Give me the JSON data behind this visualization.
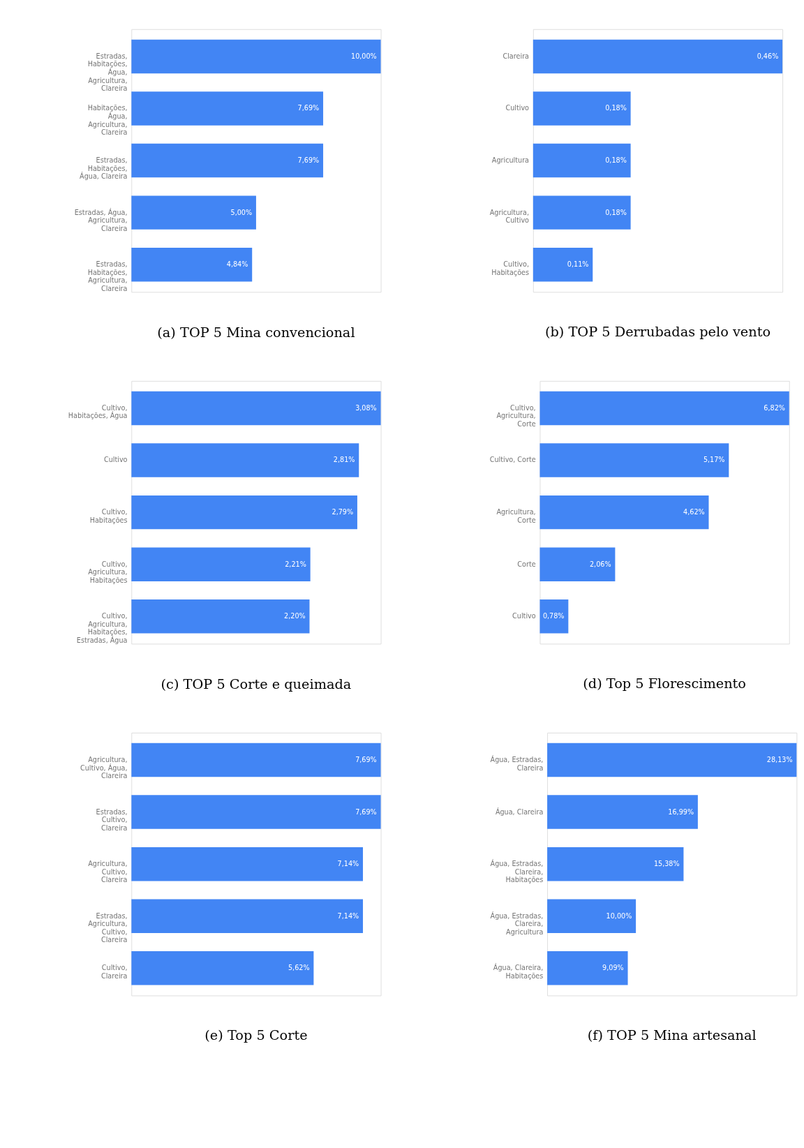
{
  "chart_data": [
    {
      "type": "bar",
      "orientation": "horizontal",
      "title": "(a) TOP 5 Mina convencional",
      "color": "#4285f4",
      "categories": [
        "Estradas, Habitações, Água, Agricultura, Clareira",
        "Habitações, Água, Agricultura, Clareira",
        "Estradas, Habitações, Água, Clareira",
        "Estradas, Água, Agricultura, Clareira",
        "Estradas, Habitações, Agricultura, Clareira"
      ],
      "values": [
        10.0,
        7.69,
        7.69,
        5.0,
        4.84
      ],
      "value_labels": [
        "10,00%",
        "7,69%",
        "7,69%",
        "5,00%",
        "4,84%"
      ]
    },
    {
      "type": "bar",
      "orientation": "horizontal",
      "title": "(b) TOP 5 Derrubadas pelo vento",
      "color": "#4285f4",
      "categories": [
        "Clareira",
        "Cultivo",
        "Agricultura",
        "Agricultura, Cultivo",
        "Cultivo, Habitações"
      ],
      "values": [
        0.46,
        0.18,
        0.18,
        0.18,
        0.11
      ],
      "value_labels": [
        "0,46%",
        "0,18%",
        "0,18%",
        "0,18%",
        "0,11%"
      ]
    },
    {
      "type": "bar",
      "orientation": "horizontal",
      "title": "(c) TOP 5 Corte e queimada",
      "color": "#4285f4",
      "categories": [
        "Cultivo, Habitações, Água",
        "Cultivo",
        "Cultivo, Habitações",
        "Cultivo, Agricultura, Habitações",
        "Cultivo, Agricultura, Habitações, Estradas, Água"
      ],
      "values": [
        3.08,
        2.81,
        2.79,
        2.21,
        2.2
      ],
      "value_labels": [
        "3,08%",
        "2,81%",
        "2,79%",
        "2,21%",
        "2,20%"
      ]
    },
    {
      "type": "bar",
      "orientation": "horizontal",
      "title": "(d) Top 5 Florescimento",
      "color": "#4285f4",
      "categories": [
        "Cultivo, Agricultura, Corte",
        "Cultivo, Corte",
        "Agricultura, Corte",
        "Corte",
        "Cultivo"
      ],
      "values": [
        6.82,
        5.17,
        4.62,
        2.06,
        0.78
      ],
      "value_labels": [
        "6,82%",
        "5,17%",
        "4,62%",
        "2,06%",
        "0,78%"
      ]
    },
    {
      "type": "bar",
      "orientation": "horizontal",
      "title": "(e) Top 5 Corte",
      "color": "#4285f4",
      "categories": [
        "Agricultura, Cultivo, Água, Clareira",
        "Estradas, Cultivo, Clareira",
        "Agricultura, Cultivo, Clareira",
        "Estradas, Agricultura, Cultivo, Clareira",
        "Cultivo, Clareira"
      ],
      "values": [
        7.69,
        7.69,
        7.14,
        7.14,
        5.62
      ],
      "value_labels": [
        "7,69%",
        "7,69%",
        "7,14%",
        "7,14%",
        "5,62%"
      ]
    },
    {
      "type": "bar",
      "orientation": "horizontal",
      "title": "(f) TOP 5 Mina artesanal",
      "color": "#4285f4",
      "categories": [
        "Água, Estradas, Clareira",
        "Água, Clareira",
        "Água, Estradas, Clareira, Habitações",
        "Água, Estradas, Clareira, Agricultura",
        "Água, Clareira, Habitações"
      ],
      "values": [
        28.13,
        16.99,
        15.38,
        10.0,
        9.09
      ],
      "value_labels": [
        "28,13%",
        "16,99%",
        "15,38%",
        "10,00%",
        "9,09%"
      ]
    }
  ]
}
